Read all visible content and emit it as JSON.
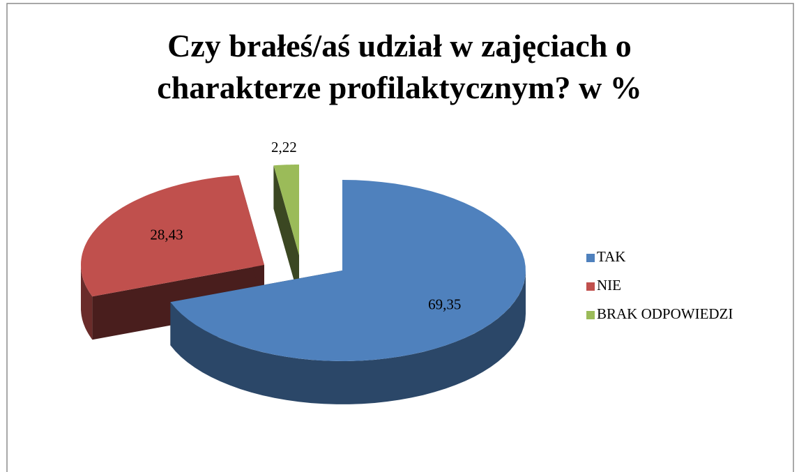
{
  "chart_data": {
    "type": "pie",
    "title": "Czy brałeś/aś udział w zajęciach o charakterze profilaktycznym? w %",
    "categories": [
      "TAK",
      "NIE",
      "BRAK ODPOWIEDZI"
    ],
    "values": [
      69.35,
      28.43,
      2.22
    ],
    "value_labels": [
      "69,35",
      "28,43",
      "2,22"
    ],
    "colors": [
      "#4f81bd",
      "#c0504d",
      "#9bbb59"
    ],
    "legend": "right"
  }
}
